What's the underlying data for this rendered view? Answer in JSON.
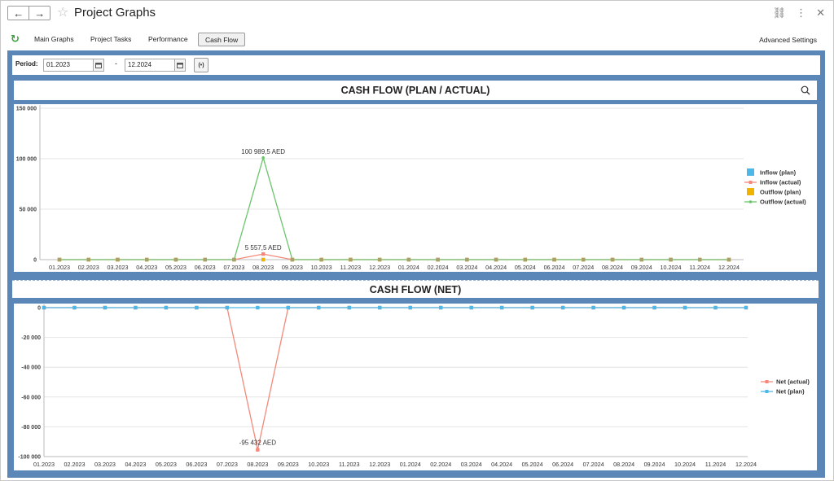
{
  "window": {
    "title": "Project Graphs",
    "back_icon": "←",
    "forward_icon": "→",
    "star_icon": "☆",
    "link_icon": "⛓",
    "more_icon": "⋮",
    "close_icon": "✕"
  },
  "tabs": {
    "refresh_icon": "↻",
    "items": [
      "Main Graphs",
      "Project Tasks",
      "Performance",
      "Cash Flow"
    ],
    "active": "Cash Flow",
    "advanced_settings": "Advanced Settings"
  },
  "period": {
    "label": "Period:",
    "from": "01.2023",
    "separator": "-",
    "to": "12.2024",
    "apply_label": "(•)"
  },
  "colors": {
    "frame": "#5a86b8",
    "inflow_plan": "#4db8e8",
    "inflow_actual": "#f4897b",
    "outflow_plan": "#f0b400",
    "outflow_actual": "#6cc46c",
    "net_actual": "#f4897b",
    "net_plan": "#4db8e8",
    "grid": "#e4e4e4"
  },
  "chart_data": [
    {
      "type": "line",
      "title": "CASH FLOW (PLAN / ACTUAL)",
      "x": [
        "01.2023",
        "02.2023",
        "03.2023",
        "04.2023",
        "05.2023",
        "06.2023",
        "07.2023",
        "08.2023",
        "09.2023",
        "10.2023",
        "11.2023",
        "12.2023",
        "01.2024",
        "02.2024",
        "03.2024",
        "04.2024",
        "05.2024",
        "06.2024",
        "07.2024",
        "08.2024",
        "09.2024",
        "10.2024",
        "11.2024",
        "12.2024"
      ],
      "yticks": [
        0,
        50000,
        100000,
        150000
      ],
      "ytick_labels": [
        "0",
        "50 000",
        "100 000",
        "150 000"
      ],
      "ylim": [
        0,
        150000
      ],
      "grid": true,
      "legend": "right",
      "series": [
        {
          "name": "Inflow (plan)",
          "marker": "square",
          "values": [
            0,
            0,
            0,
            0,
            0,
            0,
            0,
            0,
            0,
            0,
            0,
            0,
            0,
            0,
            0,
            0,
            0,
            0,
            0,
            0,
            0,
            0,
            0,
            0
          ]
        },
        {
          "name": "Inflow (actual)",
          "marker": "line-square",
          "values": [
            0,
            0,
            0,
            0,
            0,
            0,
            0,
            5557.5,
            0,
            0,
            0,
            0,
            0,
            0,
            0,
            0,
            0,
            0,
            0,
            0,
            0,
            0,
            0,
            0
          ]
        },
        {
          "name": "Outflow (plan)",
          "marker": "square",
          "values": [
            0,
            0,
            0,
            0,
            0,
            0,
            0,
            0,
            0,
            0,
            0,
            0,
            0,
            0,
            0,
            0,
            0,
            0,
            0,
            0,
            0,
            0,
            0,
            0
          ]
        },
        {
          "name": "Outflow (actual)",
          "marker": "line-dot",
          "values": [
            0,
            0,
            0,
            0,
            0,
            0,
            0,
            100989.5,
            0,
            0,
            0,
            0,
            0,
            0,
            0,
            0,
            0,
            0,
            0,
            0,
            0,
            0,
            0,
            0
          ]
        }
      ],
      "annotations": [
        {
          "x": "08.2023",
          "y": 100989.5,
          "text": "100 989,5 AED"
        },
        {
          "x": "08.2023",
          "y": 5557.5,
          "text": "5 557,5 AED"
        }
      ]
    },
    {
      "type": "line",
      "title": "CASH FLOW (NET)",
      "x": [
        "01.2023",
        "02.2023",
        "03.2023",
        "04.2023",
        "05.2023",
        "06.2023",
        "07.2023",
        "08.2023",
        "09.2023",
        "10.2023",
        "11.2023",
        "12.2023",
        "01.2024",
        "02.2024",
        "03.2024",
        "04.2024",
        "05.2024",
        "06.2024",
        "07.2024",
        "08.2024",
        "09.2024",
        "10.2024",
        "11.2024",
        "12.2024"
      ],
      "yticks": [
        0,
        -20000,
        -40000,
        -60000,
        -80000,
        -100000
      ],
      "ytick_labels": [
        "0",
        "-20 000",
        "-40 000",
        "-60 000",
        "-80 000",
        "-100 000"
      ],
      "ylim": [
        -100000,
        0
      ],
      "grid": true,
      "legend": "right",
      "series": [
        {
          "name": "Net (actual)",
          "marker": "line-square",
          "values": [
            0,
            0,
            0,
            0,
            0,
            0,
            0,
            -95432,
            0,
            0,
            0,
            0,
            0,
            0,
            0,
            0,
            0,
            0,
            0,
            0,
            0,
            0,
            0,
            0
          ]
        },
        {
          "name": "Net (plan)",
          "marker": "line-square",
          "values": [
            0,
            0,
            0,
            0,
            0,
            0,
            0,
            0,
            0,
            0,
            0,
            0,
            0,
            0,
            0,
            0,
            0,
            0,
            0,
            0,
            0,
            0,
            0,
            0
          ]
        }
      ],
      "annotations": [
        {
          "x": "08.2023",
          "y": -95432,
          "text": "-95 432 AED"
        }
      ]
    }
  ]
}
